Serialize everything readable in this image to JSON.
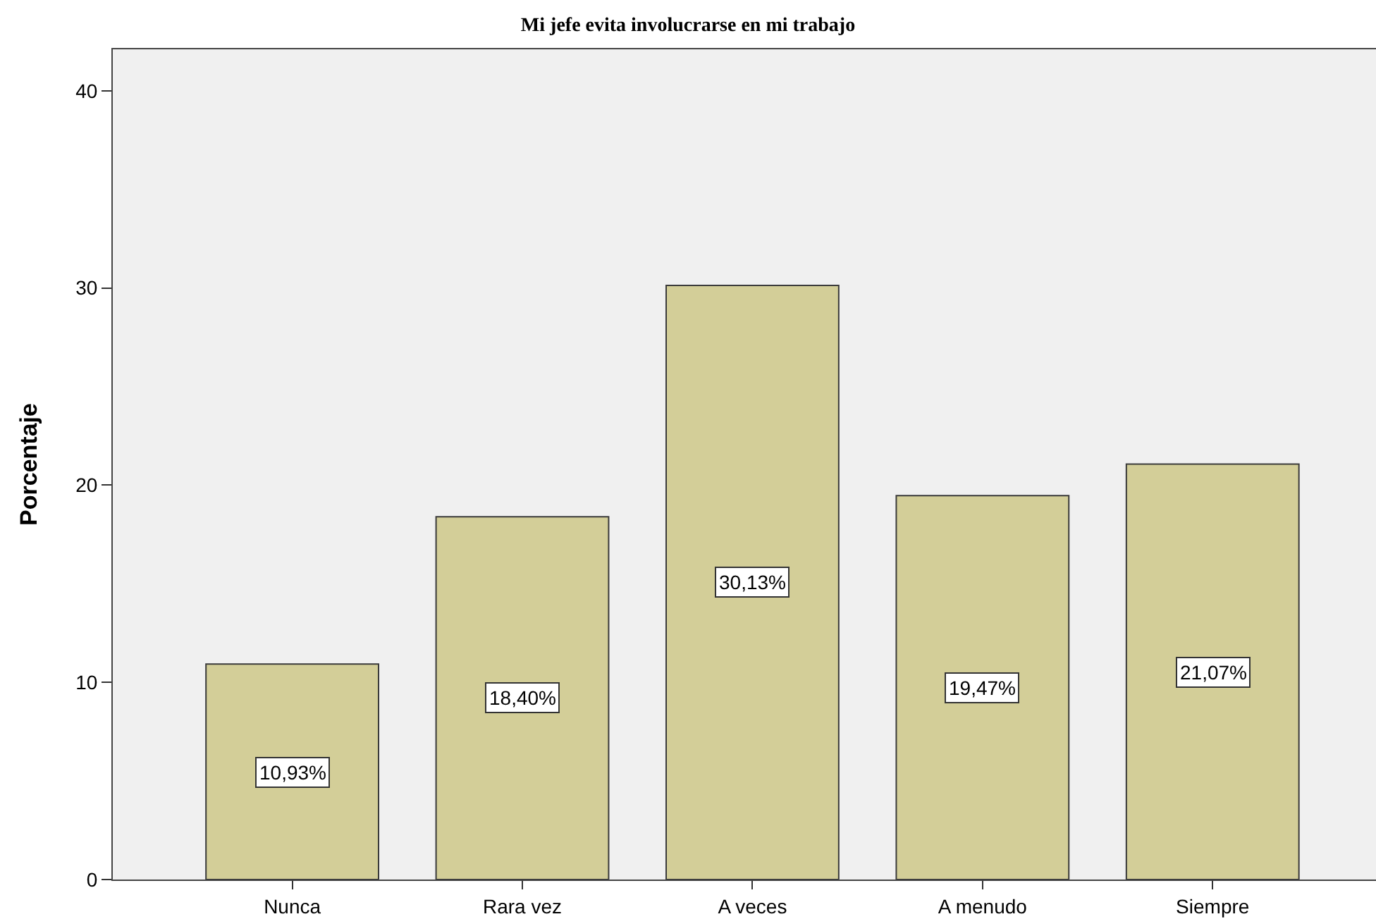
{
  "chart_data": {
    "type": "bar",
    "title": "Mi jefe evita involucrarse en mi trabajo",
    "ylabel": "Porcentaje",
    "categories": [
      "Nunca",
      "Rara vez",
      "A veces",
      "A menudo",
      "Siempre"
    ],
    "values": [
      10.93,
      18.4,
      30.13,
      19.47,
      21.07
    ],
    "value_labels": [
      "10,93%",
      "18,40%",
      "30,13%",
      "19,47%",
      "21,07%"
    ],
    "color": "#d3ce98",
    "ylim": [
      0,
      42.1
    ],
    "yticks": [
      0,
      10,
      20,
      30,
      40
    ],
    "grid": false
  }
}
